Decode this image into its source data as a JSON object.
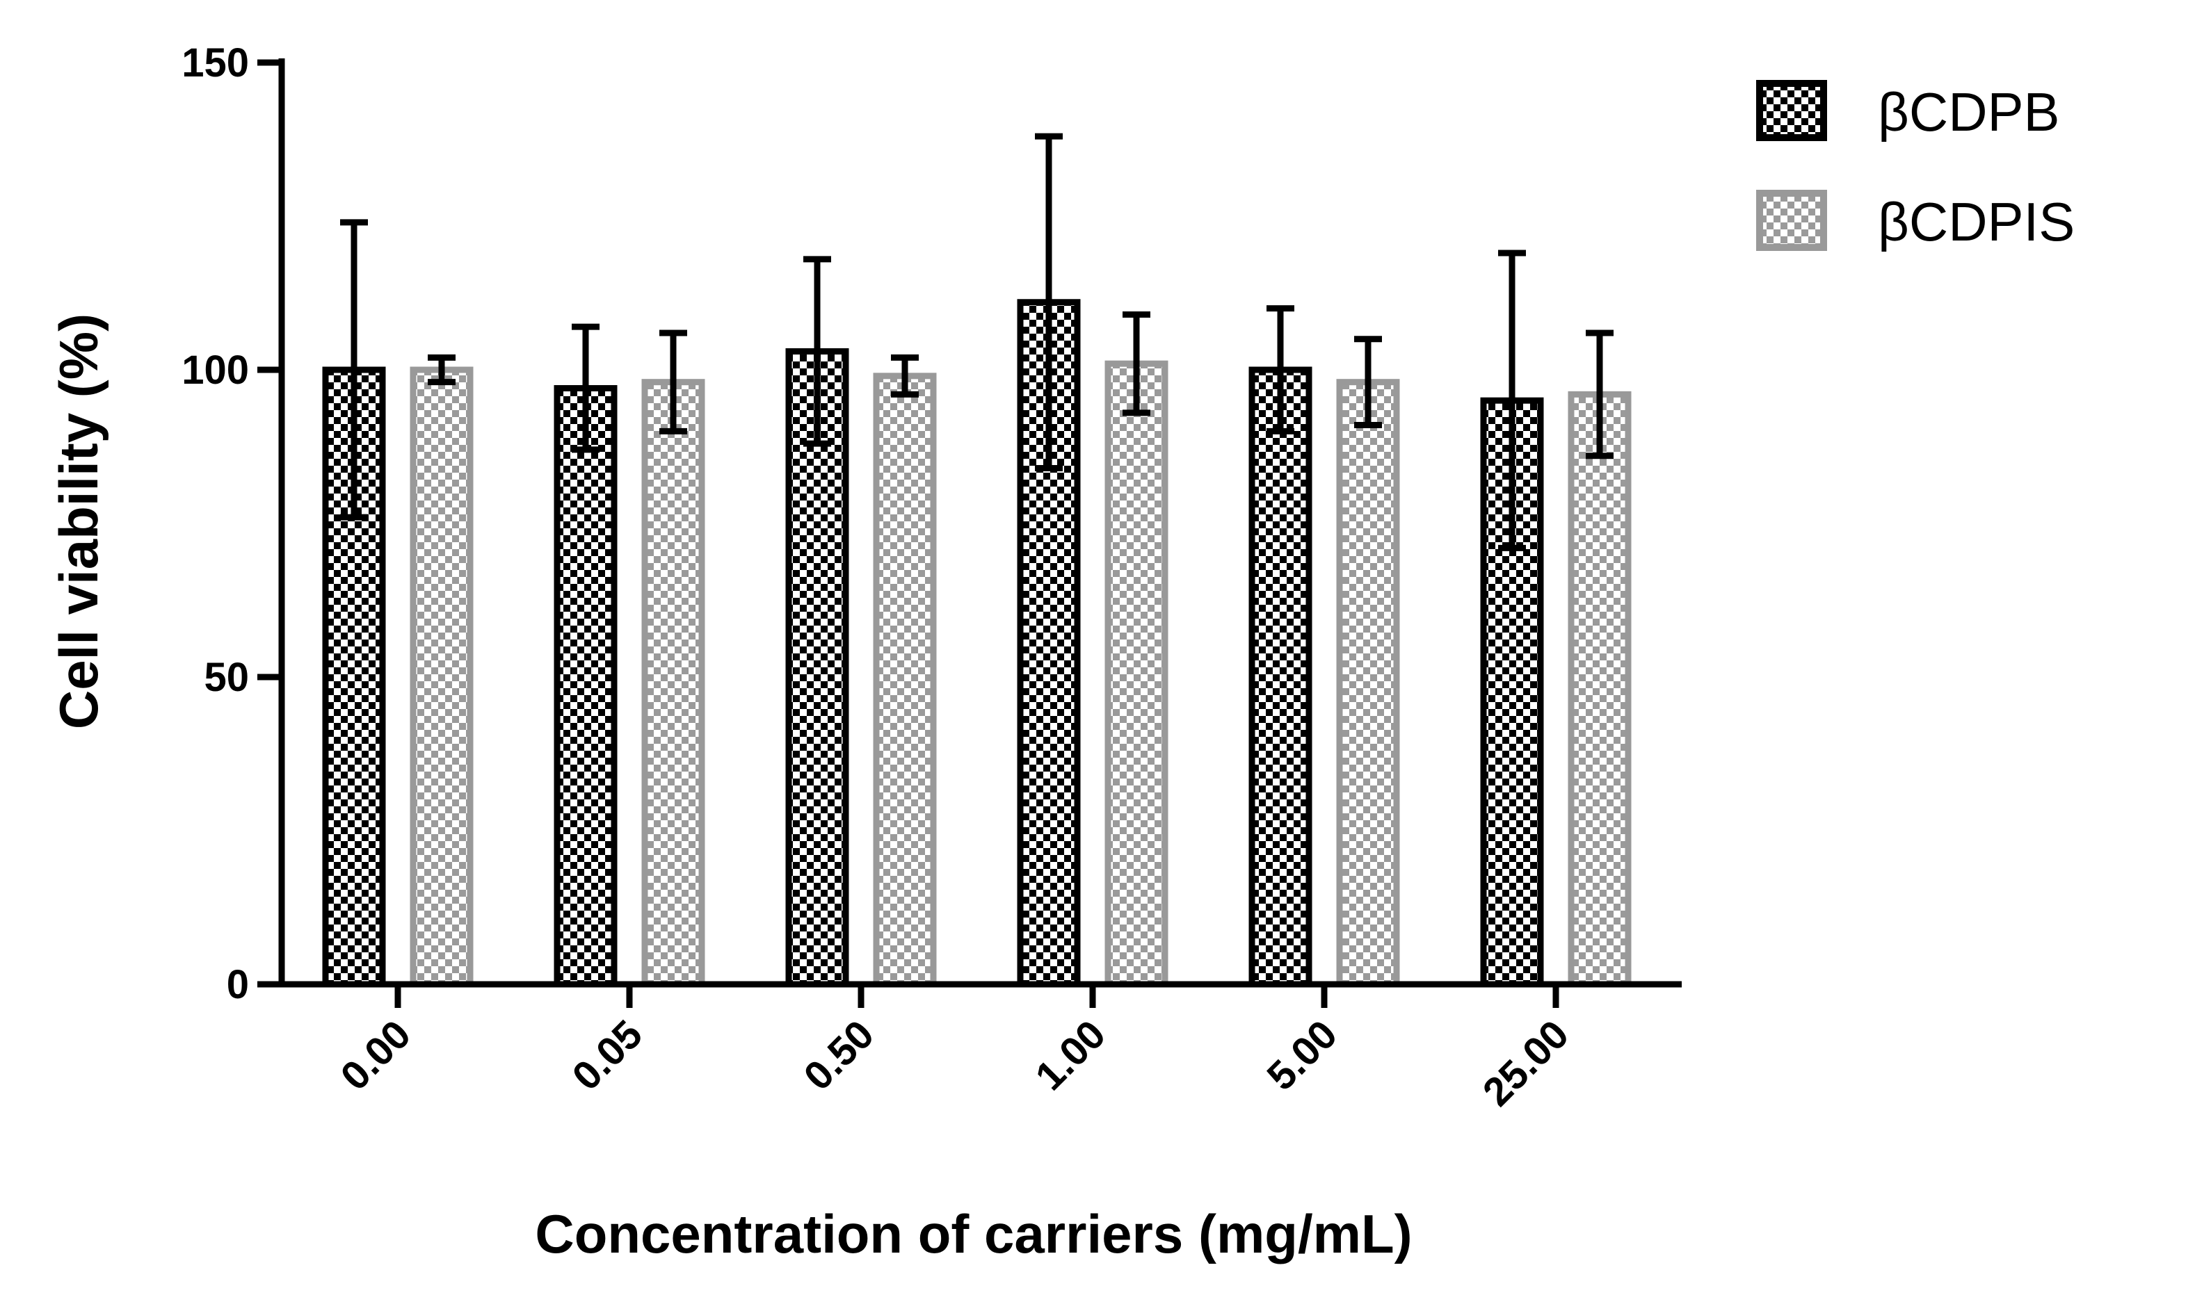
{
  "chart_data": {
    "type": "bar",
    "title": "",
    "xlabel": "Concentration of carriers (mg/mL)",
    "ylabel": "Cell viability (%)",
    "ylim": [
      0,
      150
    ],
    "yticks": [
      0,
      50,
      100,
      150
    ],
    "grid": false,
    "legend_position": "top-right",
    "categories": [
      "0.00",
      "0.05",
      "0.50",
      "1.00",
      "5.00",
      "25.00"
    ],
    "series": [
      {
        "name": "βCDPB",
        "color": "#000000",
        "pattern": "dark-checker",
        "values": [
          100,
          97,
          103,
          111,
          100,
          95
        ],
        "errors": [
          24,
          10,
          15,
          27,
          10,
          24
        ]
      },
      {
        "name": "βCDPIS",
        "color": "#999999",
        "pattern": "light-checker",
        "values": [
          100,
          98,
          99,
          101,
          98,
          96
        ],
        "errors": [
          2,
          8,
          3,
          8,
          7,
          10
        ]
      }
    ]
  }
}
